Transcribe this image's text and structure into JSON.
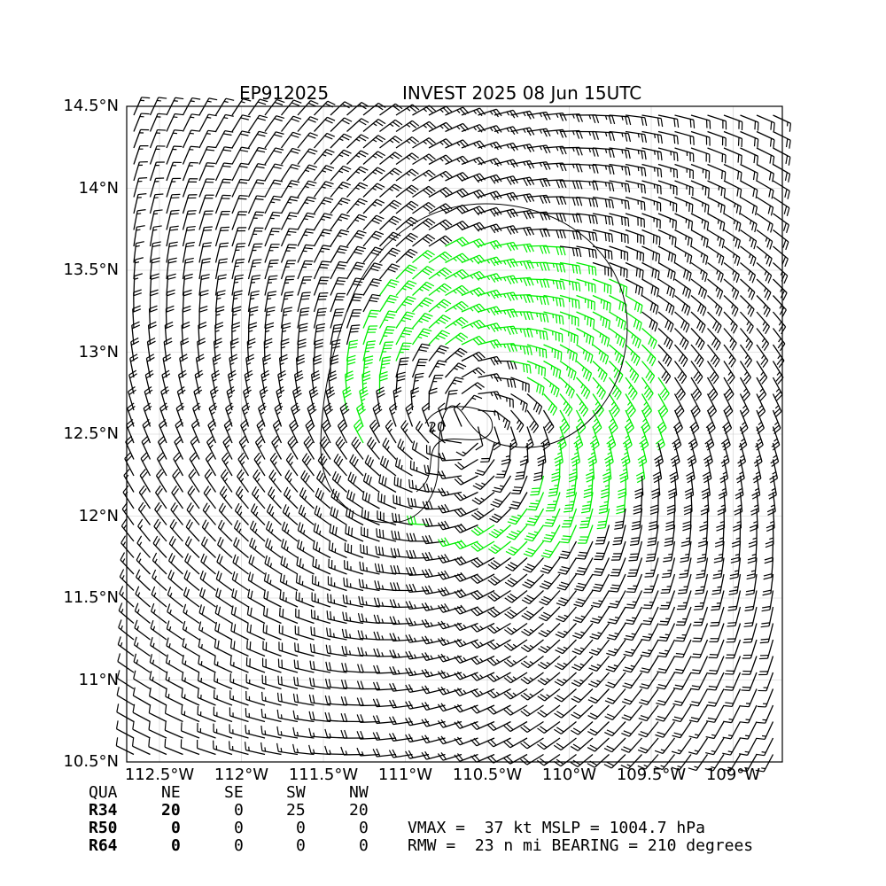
{
  "title": {
    "storm_id": "EP912025",
    "subtitle": "INVEST 2025 08 Jun 15UTC"
  },
  "map": {
    "lon_range": [
      -112.7,
      -108.7
    ],
    "lat_range": [
      10.5,
      14.5
    ],
    "lat_ticks": [
      {
        "value": 14.5,
        "label": "14.5°N"
      },
      {
        "value": 14.0,
        "label": "14°N"
      },
      {
        "value": 13.5,
        "label": "13.5°N"
      },
      {
        "value": 13.0,
        "label": "13°N"
      },
      {
        "value": 12.5,
        "label": "12.5°N"
      },
      {
        "value": 12.0,
        "label": "12°N"
      },
      {
        "value": 11.5,
        "label": "11.5°N"
      },
      {
        "value": 11.0,
        "label": "11°N"
      },
      {
        "value": 10.5,
        "label": "10.5°N"
      }
    ],
    "lon_ticks": [
      {
        "value": -112.5,
        "label": "112.5°W"
      },
      {
        "value": -112.0,
        "label": "112°W"
      },
      {
        "value": -111.5,
        "label": "111.5°W"
      },
      {
        "value": -111.0,
        "label": "111°W"
      },
      {
        "value": -110.5,
        "label": "110.5°W"
      },
      {
        "value": -110.0,
        "label": "110°W"
      },
      {
        "value": -109.5,
        "label": "109.5°W"
      },
      {
        "value": -109.0,
        "label": "109°W"
      }
    ],
    "center": {
      "lon": -110.6,
      "lat": 12.55
    },
    "contour_label": "20",
    "colors": {
      "barb_calm": "#000000",
      "barb_34kt": "#00ee00",
      "barb_50kt": "#e8a000",
      "gridline": "#cccccc"
    }
  },
  "radii_table": {
    "header": [
      "QUA",
      "NE",
      "SE",
      "SW",
      "NW"
    ],
    "rows": [
      {
        "label": "R34",
        "values": [
          "20",
          "0",
          "25",
          "20"
        ]
      },
      {
        "label": "R50",
        "values": [
          "0",
          "0",
          "0",
          "0"
        ]
      },
      {
        "label": "R64",
        "values": [
          "0",
          "0",
          "0",
          "0"
        ]
      }
    ]
  },
  "summary": {
    "line1": "VMAX =  37 kt MSLP = 1004.7 hPa",
    "line2": "RMW =  23 n mi BEARING = 210 degrees"
  }
}
